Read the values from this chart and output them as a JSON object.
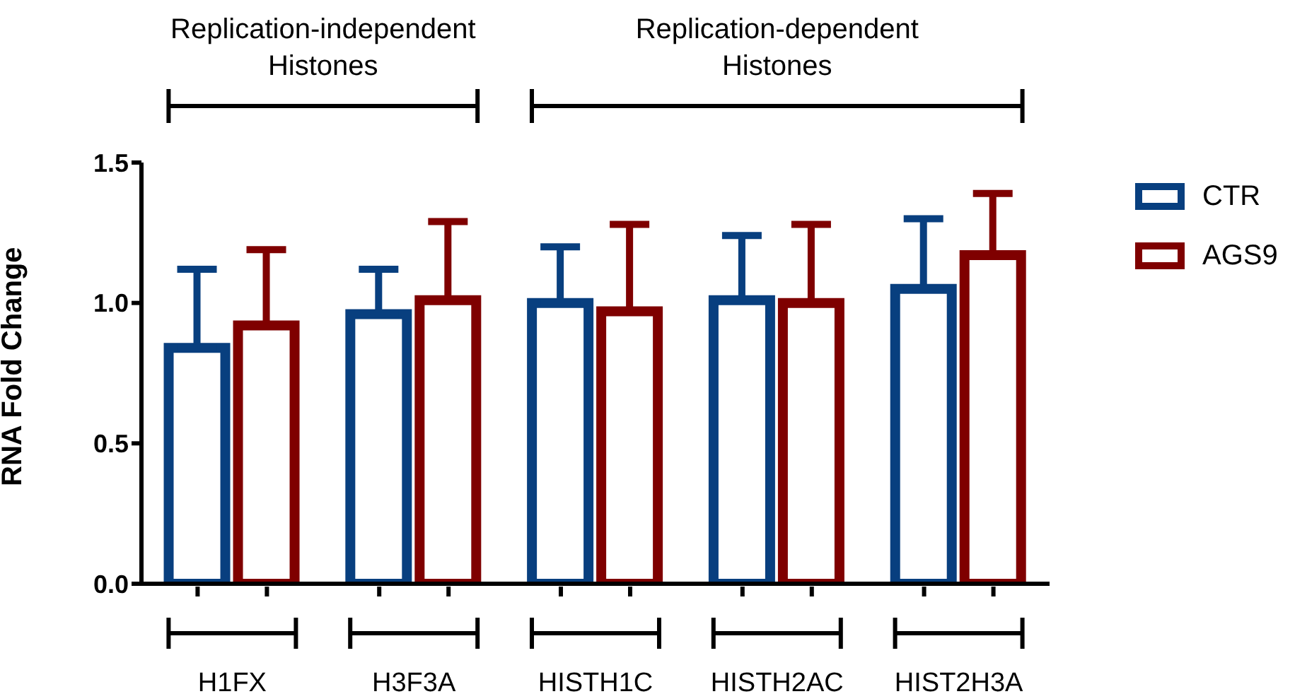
{
  "chart_data": {
    "type": "bar",
    "ylabel": "RNA Fold Change",
    "categories": [
      "H1FX",
      "H3F3A",
      "HISTH1C",
      "HISTH2AC",
      "HIST2H3A"
    ],
    "series": [
      {
        "name": "CTR",
        "color": "#083f7f",
        "values": [
          0.84,
          0.96,
          1.0,
          1.01,
          1.05
        ],
        "errors": [
          [
            0.84,
            1.12
          ],
          [
            0.96,
            1.12
          ],
          [
            1.0,
            1.2
          ],
          [
            1.01,
            1.24
          ],
          [
            1.05,
            1.3
          ]
        ]
      },
      {
        "name": "AGS9",
        "color": "#7f0000",
        "values": [
          0.92,
          1.01,
          0.97,
          1.0,
          1.17
        ],
        "errors": [
          [
            0.92,
            1.19
          ],
          [
            1.01,
            1.29
          ],
          [
            0.97,
            1.28
          ],
          [
            1.0,
            1.28
          ],
          [
            1.17,
            1.39
          ]
        ]
      }
    ],
    "ylim": [
      0,
      1.5
    ],
    "yticks": [
      {
        "value": 0,
        "label": "0.0"
      },
      {
        "value": 0.5,
        "label": "0.5"
      },
      {
        "value": 1,
        "label": "1.0"
      },
      {
        "value": 1.5,
        "label": "1.5"
      }
    ],
    "annotations": [
      "Replication-independent Histones",
      "Replication-dependent Histones"
    ],
    "grid": false,
    "legend": "top right"
  }
}
